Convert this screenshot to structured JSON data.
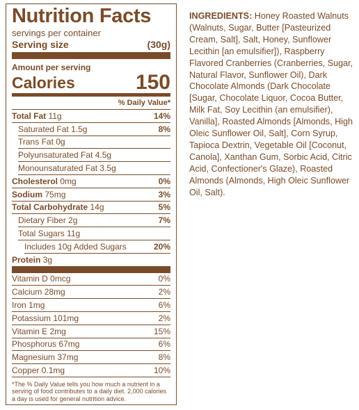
{
  "label": {
    "title": "Nutrition Facts",
    "servings": "servings per container",
    "serving_size": {
      "label": "Serving size",
      "value": "(30g)"
    },
    "amount_per_serving": "Amount per serving",
    "calories": {
      "label": "Calories",
      "value": "150"
    },
    "daily_value_header": "% Daily Value*",
    "nutrients": [
      {
        "name": "Total Fat",
        "amount": "11g",
        "dv": "14%",
        "bold": true,
        "indent": 0
      },
      {
        "name": "Saturated Fat",
        "amount": "1.5g",
        "dv": "8%",
        "bold": false,
        "indent": 1
      },
      {
        "name": "Trans Fat",
        "amount": "0g",
        "bold": false,
        "indent": 1
      },
      {
        "name": "Polyunsaturated Fat",
        "amount": "4.5g",
        "bold": false,
        "indent": 1
      },
      {
        "name": "Monounsaturated Fat",
        "amount": "3.5g",
        "bold": false,
        "indent": 1
      },
      {
        "name": "Cholesterol",
        "amount": "0mg",
        "dv": "0%",
        "bold": true,
        "indent": 0
      },
      {
        "name": "Sodium",
        "amount": "75mg",
        "dv": "3%",
        "bold": true,
        "indent": 0
      },
      {
        "name": "Total Carbohydrate",
        "amount": "14g",
        "dv": "5%",
        "bold": true,
        "indent": 0
      },
      {
        "name": "Dietary Fiber",
        "amount": "2g",
        "dv": "7%",
        "bold": false,
        "indent": 1
      },
      {
        "name": "Total Sugars",
        "amount": "11g",
        "bold": false,
        "indent": 1
      },
      {
        "name": "Includes 10g Added Sugars",
        "dv": "20%",
        "bold": false,
        "indent": 2
      },
      {
        "name": "Protein",
        "amount": "3g",
        "bold": true,
        "indent": 0
      }
    ],
    "vitamins": [
      {
        "name": "Vitamin D",
        "amount": "0mcg",
        "dv": "0%"
      },
      {
        "name": "Calcium",
        "amount": "28mg",
        "dv": "2%"
      },
      {
        "name": "Iron",
        "amount": "1mg",
        "dv": "6%"
      },
      {
        "name": "Potassium",
        "amount": "101mg",
        "dv": "2%"
      },
      {
        "name": "Vitamin E",
        "amount": "2mg",
        "dv": "15%"
      },
      {
        "name": "Phosphorus",
        "amount": "67mg",
        "dv": "6%"
      },
      {
        "name": "Magnesium",
        "amount": "37mg",
        "dv": "8%"
      },
      {
        "name": "Copper",
        "amount": "0.1mg",
        "dv": "10%"
      }
    ],
    "footnote": "*The % Daily Value tells you how much a nutrient in a serving of food contributes to a daily diet. 2,000 calories a day is used for general nutrition advice."
  },
  "ingredients": {
    "label": "INGREDIENTS:",
    "text": "Honey Roasted Walnuts (Walnuts, Sugar, Butter [Pasteurized Cream, Salt], Salt, Honey, Sunflower Lecithin [an emulsifier]), Raspberry Flavored Cranberries (Cranberries, Sugar, Natural Flavor, Sunflower Oil), Dark Chocolate Almonds (Dark Chocolate [Sugar, Chocolate Liquor, Cocoa Butter, Milk Fat, Soy Lecithin (an emulsifier), Vanilla], Roasted Almonds [Almonds, High Oleic Sunflower Oil, Salt], Corn Syrup, Tapioca Dextrin, Vegetable Oil [Coconut, Canola], Xanthan Gum, Sorbic Acid, Citric Acid, Confectioner's Glaze), Roasted Almonds (Almonds, High Oleic Sunflower Oil, Salt)."
  }
}
